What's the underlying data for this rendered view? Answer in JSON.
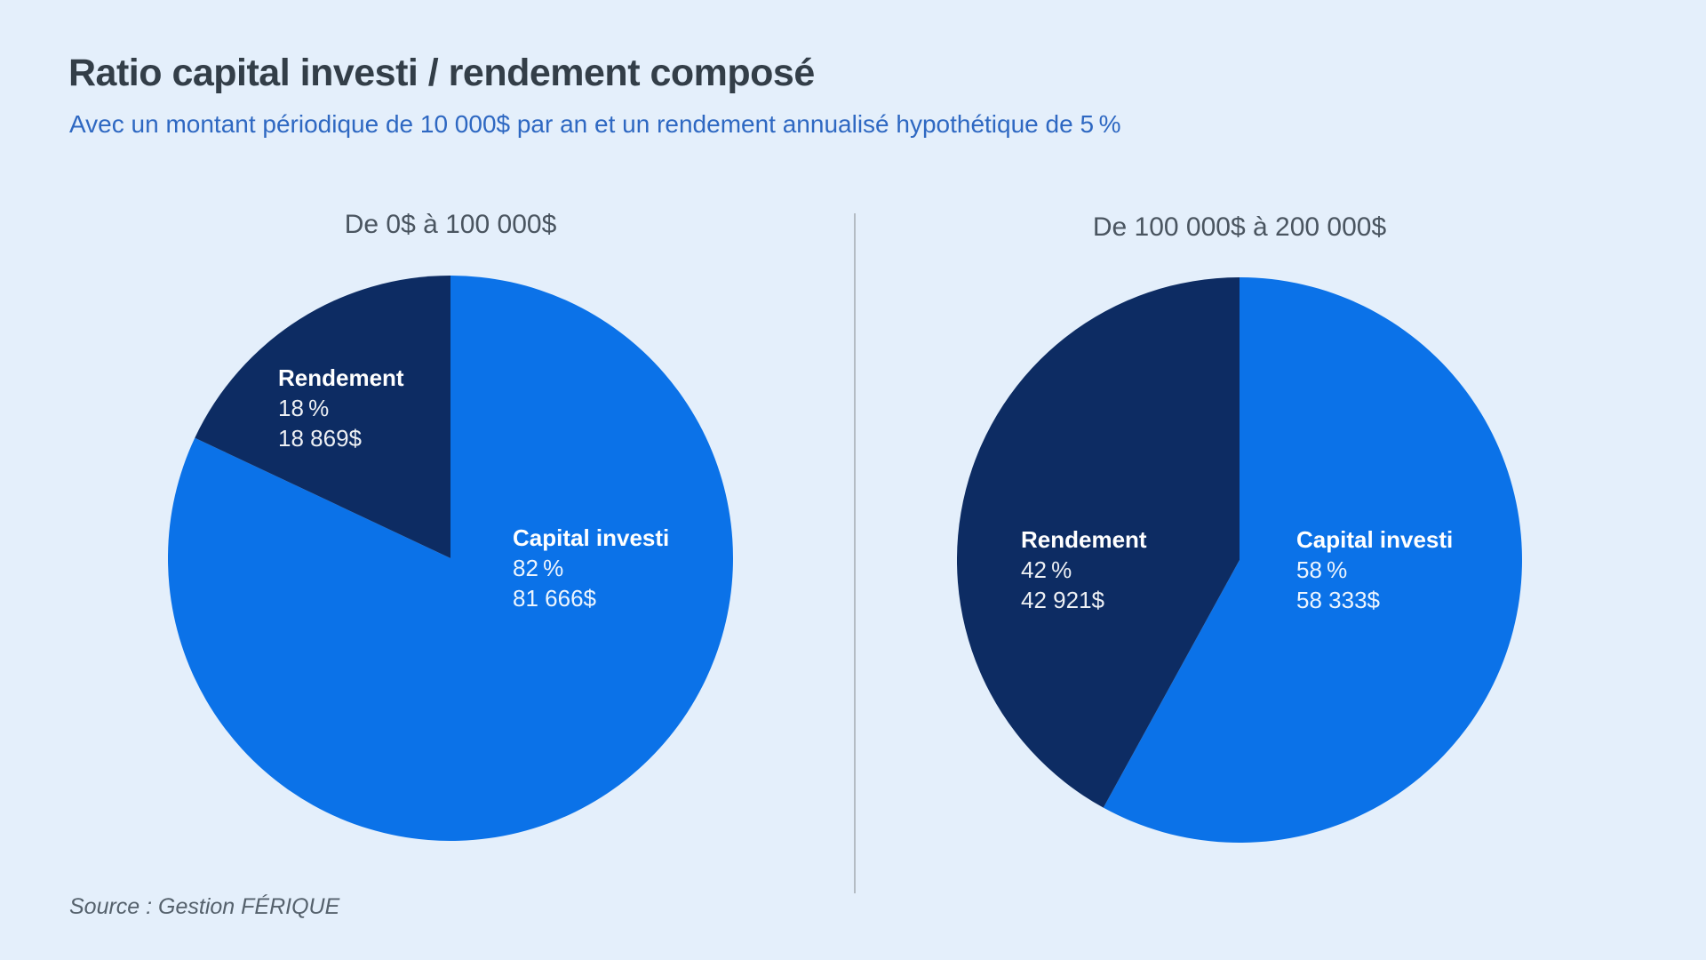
{
  "page": {
    "title": "Ratio capital investi / rendement composé",
    "subtitle": "Avec un montant périodique de 10 000$ par an et un rendement annualisé hypothétique de 5 %",
    "source": "Source : Gestion FÉRIQUE"
  },
  "colors": {
    "background": "#e4effb",
    "capital_investi": "#0b72e8",
    "rendement": "#0d2c63",
    "title_text": "#333e48",
    "subtitle_text": "#2e68c2",
    "chart_title_text": "#4a5560",
    "source_text": "#55616c",
    "divider": "#b4bcc4",
    "slice_label_text": "#ffffff"
  },
  "chart_data": [
    {
      "type": "pie",
      "title": "De 0$ à 100 000$",
      "start_angle_deg": 0,
      "direction": "clockwise",
      "legend": "none",
      "labels_on_slices": true,
      "slices": [
        {
          "label": "Capital investi",
          "percent": 82,
          "percent_label": "82 %",
          "value": 81666,
          "amount_label": "81 666$",
          "color": "#0b72e8"
        },
        {
          "label": "Rendement",
          "percent": 18,
          "percent_label": "18 %",
          "value": 18869,
          "amount_label": "18 869$",
          "color": "#0d2c63"
        }
      ]
    },
    {
      "type": "pie",
      "title": "De 100 000$ à 200 000$",
      "start_angle_deg": 0,
      "direction": "clockwise",
      "legend": "none",
      "labels_on_slices": true,
      "slices": [
        {
          "label": "Capital investi",
          "percent": 58,
          "percent_label": "58 %",
          "value": 58333,
          "amount_label": "58 333$",
          "color": "#0b72e8"
        },
        {
          "label": "Rendement",
          "percent": 42,
          "percent_label": "42 %",
          "value": 42921,
          "amount_label": "42 921$",
          "color": "#0d2c63"
        }
      ]
    }
  ]
}
